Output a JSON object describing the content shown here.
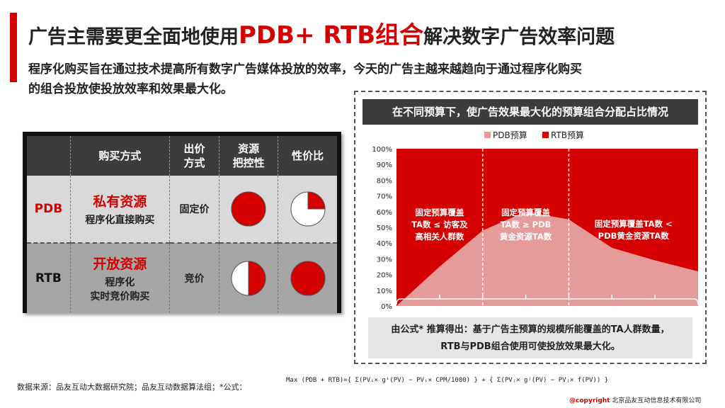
{
  "header": {
    "title_prefix": "广告主需要更全面地使用",
    "title_highlight": "PDB+ RTB组合",
    "title_suffix": "解决数字广告效率问题",
    "subtitle_line1": "程序化购买旨在通过技术提高所有数字广告媒体投放的效率，今天的广告主越来越趋向于通过程序化购买",
    "subtitle_line2": "的组合投放使投放效率和效果最大化。"
  },
  "table": {
    "headers": [
      "",
      "购买方式",
      "出价方式",
      "资源把控性",
      "性价比"
    ],
    "header_lines": {
      "bid": [
        "出价",
        "方式"
      ],
      "control": [
        "资源",
        "把控性"
      ]
    },
    "rows": [
      {
        "label": "PDB",
        "resource": "私有资源",
        "desc_lines": [
          "程序化直接购买"
        ],
        "price": "固定价",
        "control_fraction": 1.0,
        "value_fraction": 0.25
      },
      {
        "label": "RTB",
        "resource": "开放资源",
        "desc_lines": [
          "程序化",
          "实时竞价购买"
        ],
        "price": "竞价",
        "control_fraction": 0.5,
        "value_fraction": 1.0
      }
    ]
  },
  "chart_panel": {
    "title": "在不同预算下，使广告效果最大化的预算组合分配占比情况",
    "note_line1": "由公式* 推算得出：基于广告主预算的规模所能覆盖的TA人群数量，",
    "note_line2": "RTB与PDB组合使用可使投放效果最大化。"
  },
  "chart_data": {
    "type": "area",
    "stacked": true,
    "x": [
      0,
      1,
      2,
      3,
      4,
      5,
      6,
      7
    ],
    "series": [
      {
        "name": "PDB预算",
        "color": "#e69b9b",
        "values": [
          0,
          25,
          48,
          60,
          55,
          37,
          29,
          22
        ]
      },
      {
        "name": "RTB预算",
        "color": "#d40000",
        "values": [
          100,
          75,
          52,
          40,
          45,
          63,
          71,
          78
        ]
      }
    ],
    "ylim": [
      0,
      100
    ],
    "yticks": [
      "0%",
      "10%",
      "20%",
      "30%",
      "40%",
      "50%",
      "60%",
      "70%",
      "80%",
      "90%",
      "100%"
    ],
    "legend_position": "top",
    "segment_labels": [
      [
        "固定预算覆盖",
        "TA数 ≤ 访客及",
        "高相关人群数"
      ],
      [
        "固定预算覆盖",
        "TA数 ≥ PDB",
        "黄金资源TA数"
      ],
      [
        "固定预算覆盖TA数 <",
        "PDB黄金资源TA数"
      ]
    ],
    "dividers_x": [
      2,
      4
    ]
  },
  "footer": {
    "source": "数据来源：品友互动大数据研究院；品友互动数据算法组；*公式：",
    "formula": "Max (PDB + RTB)={ Σ(PVᵢ× gⁱ(PV) − PVᵢ× CPM/1000) } + { Σ(PVⱼ× gʲ(PV) − PVⱼ× f(PV)) }",
    "copyright_mark": "@copyright",
    "copyright_text": "北京品友互动信息技术有限公司"
  },
  "colors": {
    "accent": "#d40000",
    "dark": "#3c3c3c",
    "pdb": "#e69b9b"
  }
}
